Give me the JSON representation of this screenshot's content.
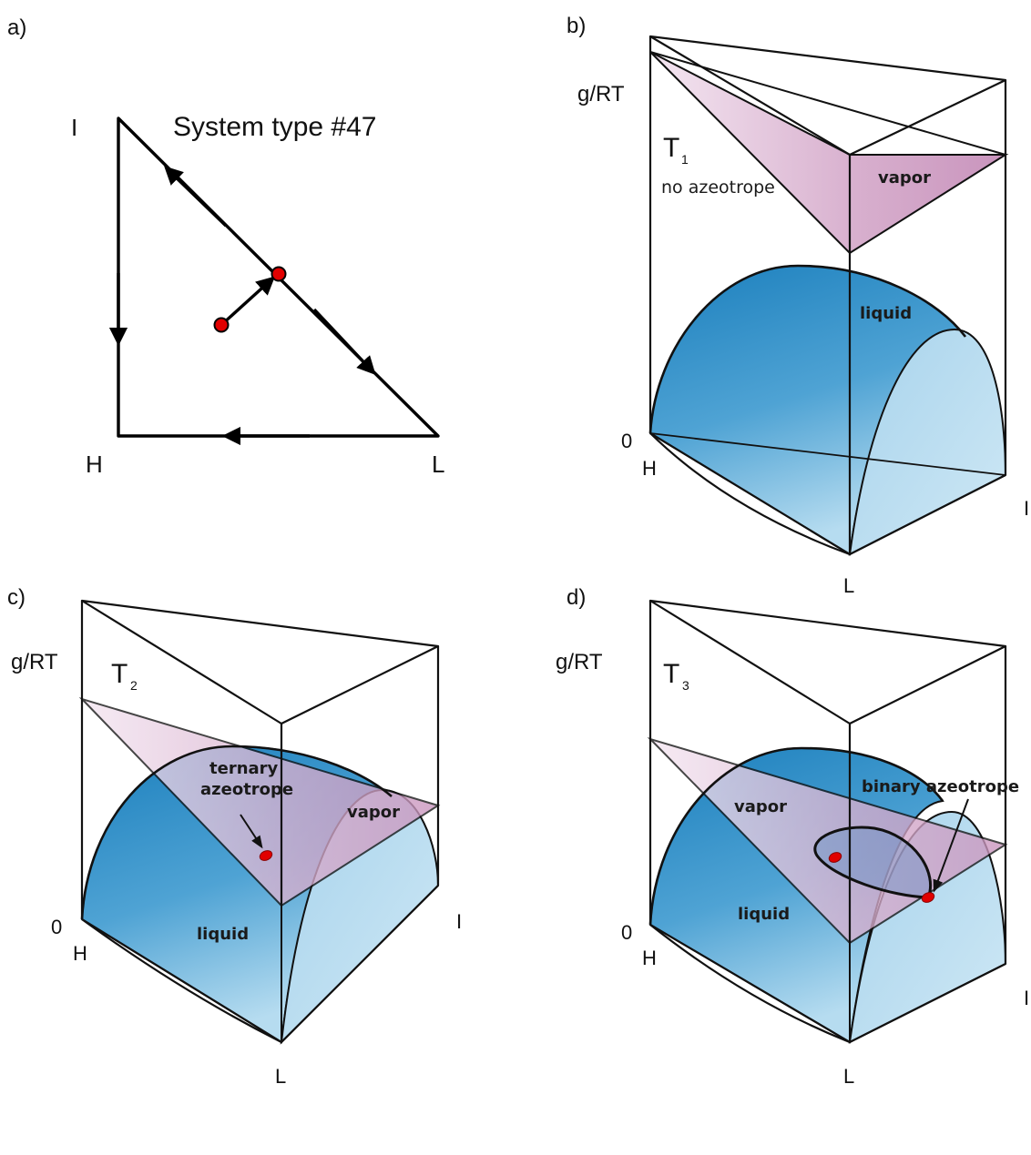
{
  "panels": {
    "a": {
      "tag": "a)",
      "title": "System type #47",
      "vertices": {
        "top": "I",
        "bottom_left": "H",
        "bottom_right": "L"
      }
    },
    "b": {
      "tag": "b)",
      "axis_label": "g/RT",
      "zero_label": "0",
      "temperature": "T",
      "temperature_sub": "1",
      "note": "no azeotrope",
      "vapor_label": "vapor",
      "liquid_label": "liquid",
      "vertices": {
        "h": "H",
        "i": "I",
        "l": "L"
      }
    },
    "c": {
      "tag": "c)",
      "axis_label": "g/RT",
      "zero_label": "0",
      "temperature": "T",
      "temperature_sub": "2",
      "annotation_line1": "ternary",
      "annotation_line2": "azeotrope",
      "vapor_label": "vapor",
      "liquid_label": "liquid",
      "vertices": {
        "h": "H",
        "i": "I",
        "l": "L"
      }
    },
    "d": {
      "tag": "d)",
      "axis_label": "g/RT",
      "zero_label": "0",
      "temperature": "T",
      "temperature_sub": "3",
      "annotation": "binary azeotrope",
      "vapor_label": "vapor",
      "liquid_label": "liquid",
      "vertices": {
        "h": "H",
        "i": "I",
        "l": "L"
      }
    }
  },
  "colors": {
    "liquid_dark": "#1b7fbd",
    "liquid_light": "#b9ddf0",
    "vapor": "#cf9fc4",
    "vapor_light": "#f2e3ef",
    "point": "#e10000",
    "line": "#111111"
  }
}
